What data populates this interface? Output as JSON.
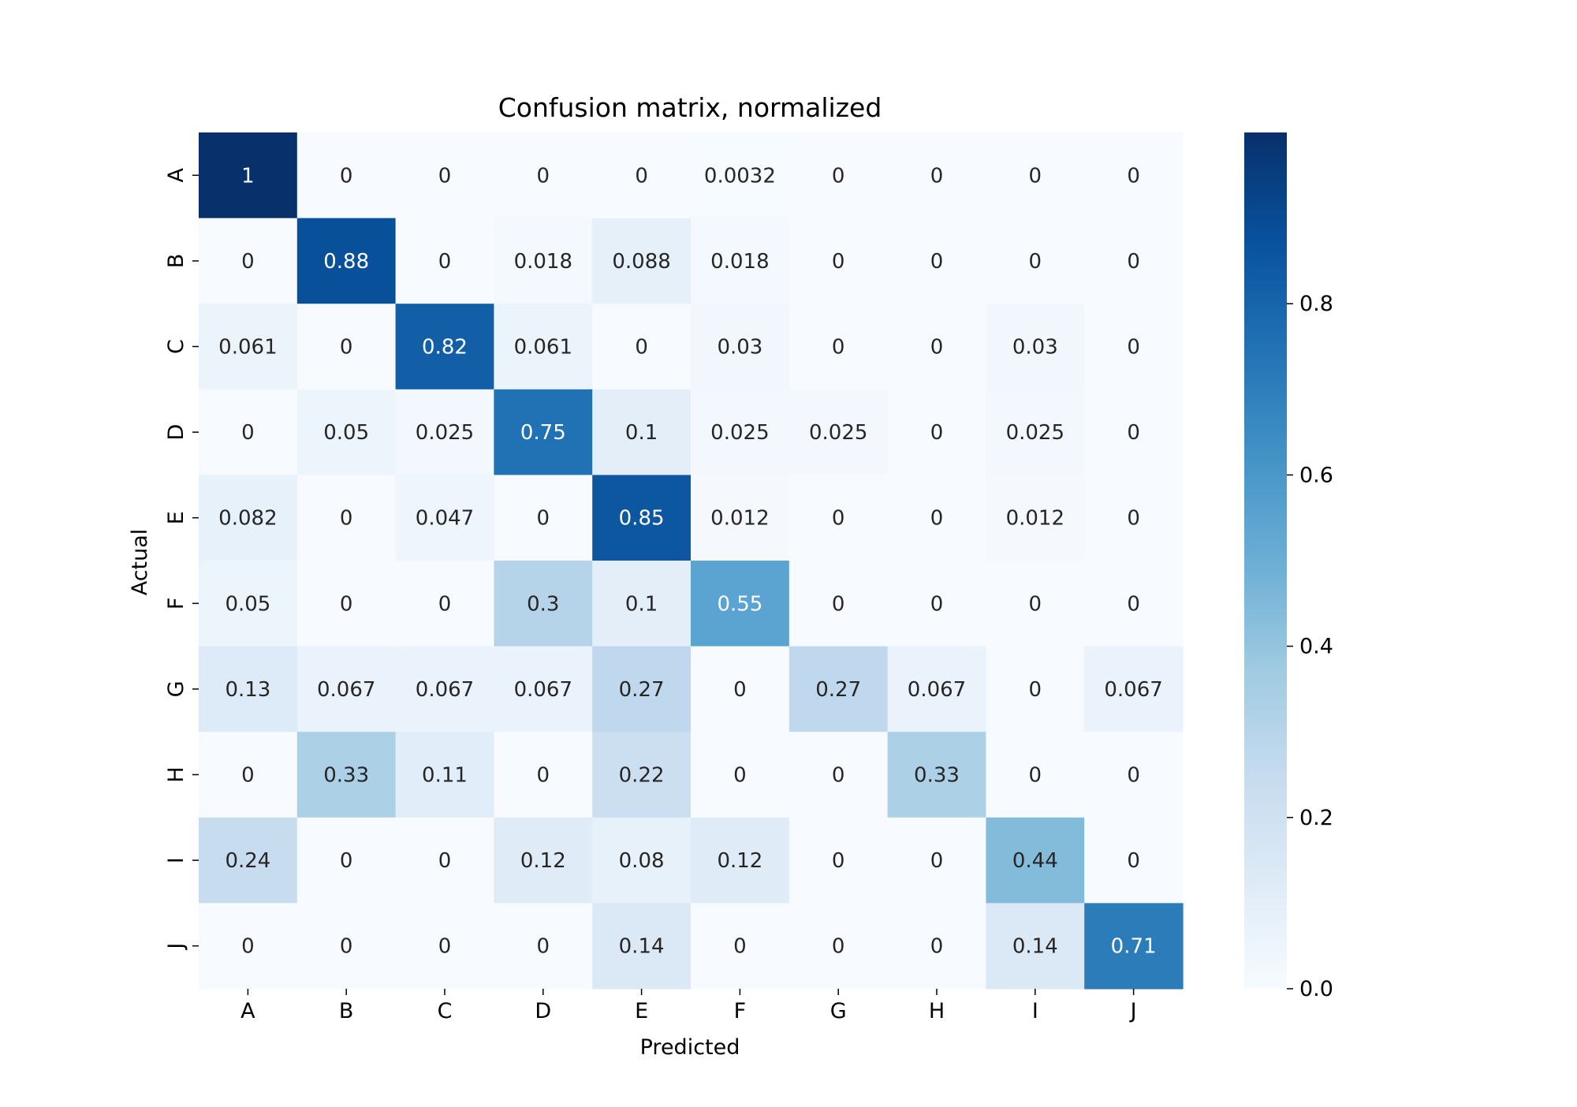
{
  "chart_data": {
    "type": "heatmap",
    "title": "Confusion matrix, normalized",
    "xlabel": "Predicted",
    "ylabel": "Actual",
    "x_categories": [
      "A",
      "B",
      "C",
      "D",
      "E",
      "F",
      "G",
      "H",
      "I",
      "J"
    ],
    "y_categories": [
      "A",
      "B",
      "C",
      "D",
      "E",
      "F",
      "G",
      "H",
      "I",
      "J"
    ],
    "values": [
      [
        1,
        0,
        0,
        0,
        0,
        0.0032,
        0,
        0,
        0,
        0
      ],
      [
        0,
        0.88,
        0,
        0.018,
        0.088,
        0.018,
        0,
        0,
        0,
        0
      ],
      [
        0.061,
        0,
        0.82,
        0.061,
        0,
        0.03,
        0,
        0,
        0.03,
        0
      ],
      [
        0,
        0.05,
        0.025,
        0.75,
        0.1,
        0.025,
        0.025,
        0,
        0.025,
        0
      ],
      [
        0.082,
        0,
        0.047,
        0,
        0.85,
        0.012,
        0,
        0,
        0.012,
        0
      ],
      [
        0.05,
        0,
        0,
        0.3,
        0.1,
        0.55,
        0,
        0,
        0,
        0
      ],
      [
        0.13,
        0.067,
        0.067,
        0.067,
        0.27,
        0,
        0.27,
        0.067,
        0,
        0.067
      ],
      [
        0,
        0.33,
        0.11,
        0,
        0.22,
        0,
        0,
        0.33,
        0,
        0
      ],
      [
        0.24,
        0,
        0,
        0.12,
        0.08,
        0.12,
        0,
        0,
        0.44,
        0
      ],
      [
        0,
        0,
        0,
        0,
        0.14,
        0,
        0,
        0,
        0.14,
        0.71
      ]
    ],
    "colormap": "Blues",
    "colorbar": {
      "range": [
        0,
        1
      ],
      "ticks": [
        0.0,
        0.2,
        0.4,
        0.6,
        0.8
      ],
      "tick_labels": [
        "0.0",
        "0.2",
        "0.4",
        "0.6",
        "0.8"
      ]
    },
    "annotations": true,
    "grid": false
  }
}
